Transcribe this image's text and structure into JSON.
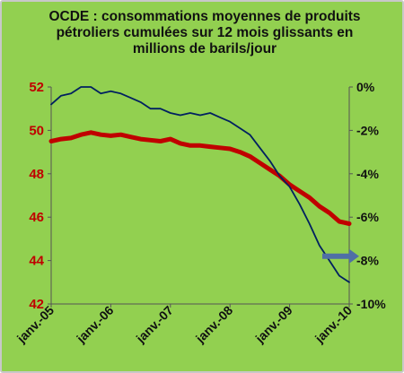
{
  "chart_data": {
    "type": "line",
    "title": "OCDE : consommations moyennes de produits pétroliers cumulées sur 12 mois glissants en millions de barils/jour",
    "title_lines": [
      "OCDE : consommations moyennes de produits",
      "pétroliers cumulées sur 12 mois glissants en",
      "millions de barils/jour"
    ],
    "x_tick_labels": [
      "janv.-05",
      "janv.-06",
      "janv.-07",
      "janv.-08",
      "janv.-09",
      "janv.-10"
    ],
    "y_left": {
      "ticks": [
        "52",
        "50",
        "48",
        "46",
        "44",
        "42"
      ],
      "ylim": [
        42,
        52
      ]
    },
    "y_right": {
      "ticks": [
        "0%",
        "-2%",
        "-4%",
        "-6%",
        "-8%",
        "-10%"
      ],
      "ylim": [
        -10,
        0
      ]
    },
    "grid": false,
    "legend": "none",
    "series": [
      {
        "axis": "left",
        "color": "#c00000",
        "points": [
          [
            "janv.-05",
            49.5
          ],
          [
            "mars-05",
            49.6
          ],
          [
            "mai-05",
            49.65
          ],
          [
            "juil.-05",
            49.8
          ],
          [
            "sept.-05",
            49.9
          ],
          [
            "nov.-05",
            49.8
          ],
          [
            "janv.-06",
            49.75
          ],
          [
            "mars-06",
            49.8
          ],
          [
            "mai-06",
            49.7
          ],
          [
            "juil.-06",
            49.6
          ],
          [
            "sept.-06",
            49.55
          ],
          [
            "nov.-06",
            49.5
          ],
          [
            "janv.-07",
            49.6
          ],
          [
            "mars-07",
            49.4
          ],
          [
            "mai-07",
            49.3
          ],
          [
            "juil.-07",
            49.3
          ],
          [
            "sept.-07",
            49.25
          ],
          [
            "nov.-07",
            49.2
          ],
          [
            "janv.-08",
            49.15
          ],
          [
            "mars-08",
            49.0
          ],
          [
            "mai-08",
            48.8
          ],
          [
            "juil.-08",
            48.5
          ],
          [
            "sept.-08",
            48.2
          ],
          [
            "nov.-08",
            47.9
          ],
          [
            "janv.-09",
            47.5
          ],
          [
            "mars-09",
            47.2
          ],
          [
            "mai-09",
            46.9
          ],
          [
            "juil.-09",
            46.5
          ],
          [
            "sept.-09",
            46.2
          ],
          [
            "nov.-09",
            45.8
          ],
          [
            "janv.-10",
            45.7
          ]
        ]
      },
      {
        "axis": "right",
        "color": "#002060",
        "points": [
          [
            "janv.-05",
            -0.8
          ],
          [
            "mars-05",
            -0.4
          ],
          [
            "mai-05",
            -0.3
          ],
          [
            "juil.-05",
            0.0
          ],
          [
            "sept.-05",
            0.0
          ],
          [
            "nov.-05",
            -0.3
          ],
          [
            "janv.-06",
            -0.2
          ],
          [
            "mars-06",
            -0.3
          ],
          [
            "mai-06",
            -0.5
          ],
          [
            "juil.-06",
            -0.7
          ],
          [
            "sept.-06",
            -1.0
          ],
          [
            "nov.-06",
            -1.0
          ],
          [
            "janv.-07",
            -1.2
          ],
          [
            "mars-07",
            -1.3
          ],
          [
            "mai-07",
            -1.2
          ],
          [
            "juil.-07",
            -1.3
          ],
          [
            "sept.-07",
            -1.2
          ],
          [
            "nov.-07",
            -1.4
          ],
          [
            "janv.-08",
            -1.6
          ],
          [
            "mars-08",
            -1.9
          ],
          [
            "mai-08",
            -2.2
          ],
          [
            "juil.-08",
            -2.8
          ],
          [
            "sept.-08",
            -3.4
          ],
          [
            "nov.-08",
            -4.1
          ],
          [
            "janv.-09",
            -4.6
          ],
          [
            "mars-09",
            -5.4
          ],
          [
            "mai-09",
            -6.3
          ],
          [
            "juil.-09",
            -7.3
          ],
          [
            "sept.-09",
            -8.0
          ],
          [
            "nov.-09",
            -8.7
          ],
          [
            "janv.-10",
            -9.0
          ]
        ]
      }
    ],
    "annotation": {
      "type": "arrow",
      "direction": "right",
      "color": "#4f6fa6",
      "points_to_axis": "right",
      "value": -7.8
    }
  }
}
